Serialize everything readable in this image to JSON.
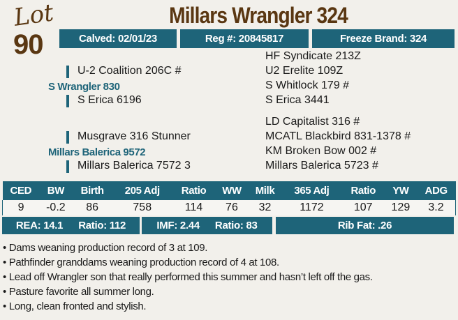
{
  "lot": {
    "label": "Lot",
    "number": "90"
  },
  "title": "Millars Wrangler 324",
  "info_bar": {
    "calved": "Calved: 02/01/23",
    "reg": "Reg #: 20845817",
    "freeze_brand": "Freeze Brand: 324"
  },
  "pedigree": {
    "sire": "S Wrangler 830",
    "sire_sire": "U-2 Coalition 206C #",
    "sire_dam": "S Erica 6196",
    "sire_sire_sire": "HF Syndicate 213Z",
    "sire_sire_dam": "U2 Erelite 109Z",
    "sire_dam_sire": "S Whitlock 179 #",
    "sire_dam_dam": "S Erica 3441",
    "dam": "Millars Balerica 9572",
    "dam_sire": "Musgrave 316 Stunner",
    "dam_dam": "Millars Balerica 7572 3",
    "dam_sire_sire": "LD Capitalist 316 #",
    "dam_sire_dam": "MCATL Blackbird 831-1378 #",
    "dam_dam_sire": "KM Broken Bow 002 #",
    "dam_dam_dam": "Millars Balerica 5723 #"
  },
  "epd": {
    "headers": [
      "CED",
      "BW",
      "Birth",
      "205 Adj",
      "Ratio",
      "WW",
      "Milk",
      "365 Adj",
      "Ratio",
      "YW",
      "ADG"
    ],
    "values": [
      "9",
      "-0.2",
      "86",
      "758",
      "114",
      "76",
      "32",
      "1172",
      "107",
      "129",
      "3.2"
    ]
  },
  "carcass": {
    "rea": "REA: 14.1",
    "rea_ratio": "Ratio: 112",
    "imf": "IMF: 2.44",
    "imf_ratio": "Ratio: 83",
    "rib_fat": "Rib Fat: .26"
  },
  "notes": [
    "Dams weaning production record of 3 at 109.",
    "Pathfinder granddams weaning production record of 4 at 108.",
    "Lead off Wrangler son that really performed this summer and hasn’t left off the gas.",
    "Pasture favorite all summer long.",
    "Long, clean fronted and stylish."
  ],
  "colors": {
    "teal": "#1e6479",
    "brown": "#5a3712"
  }
}
